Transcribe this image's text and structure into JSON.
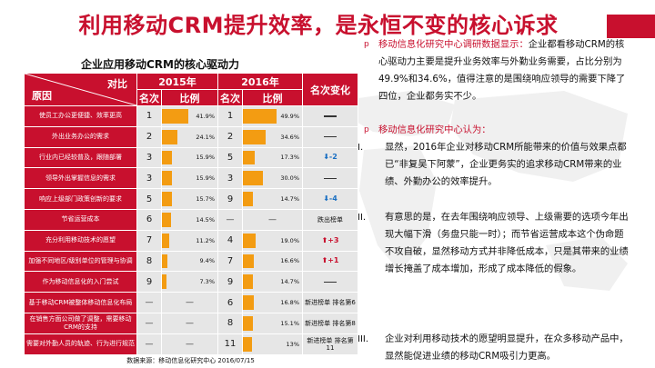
{
  "title": "利用移动CRM提升效率，是永恒不变的核心诉求",
  "table": {
    "caption": "企业应用移动CRM的核心驱动力",
    "header": {
      "corner_right": "对比",
      "corner_left": "原因",
      "year_2015": "2015年",
      "year_2016": "2016年",
      "change": "名次变化",
      "rank": "名次",
      "ratio": "比例"
    },
    "rows": [
      {
        "reason": "使员工办公更便捷、效率更高",
        "rank2015": "1",
        "ratio2015": "41.9%",
        "v2015": 41.9,
        "rank2016": "1",
        "ratio2016": "49.9%",
        "v2016": 49.9,
        "change_type": "same",
        "change": ""
      },
      {
        "reason": "外出业务办公的需求",
        "rank2015": "2",
        "ratio2015": "24.1%",
        "v2015": 24.1,
        "rank2016": "2",
        "ratio2016": "34.6%",
        "v2016": 34.6,
        "change_type": "same",
        "change": ""
      },
      {
        "reason": "行业内已经较普及，跟随部署",
        "rank2015": "3",
        "ratio2015": "15.9%",
        "v2015": 15.9,
        "rank2016": "5",
        "ratio2016": "17.3%",
        "v2016": 17.3,
        "change_type": "down",
        "change": "-2"
      },
      {
        "reason": "领导外出掌握信息的需求",
        "rank2015": "3",
        "ratio2015": "15.9%",
        "v2015": 15.9,
        "rank2016": "3",
        "ratio2016": "30.0%",
        "v2016": 30.0,
        "change_type": "same",
        "change": ""
      },
      {
        "reason": "响应上级部门政策创新的要求",
        "rank2015": "5",
        "ratio2015": "15.7%",
        "v2015": 15.7,
        "rank2016": "9",
        "ratio2016": "14.7%",
        "v2016": 14.7,
        "change_type": "down",
        "change": "-4"
      },
      {
        "reason": "节省运营成本",
        "rank2015": "6",
        "ratio2015": "14.5%",
        "v2015": 14.5,
        "rank2016": "—",
        "ratio2016": "—",
        "v2016": null,
        "change_type": "text",
        "change": "跌出榜单"
      },
      {
        "reason": "充分利用移动技术的愿望",
        "rank2015": "7",
        "ratio2015": "11.2%",
        "v2015": 11.2,
        "rank2016": "4",
        "ratio2016": "19.0%",
        "v2016": 19.0,
        "change_type": "up",
        "change": "+3"
      },
      {
        "reason": "加强不同地区/级别单位的管理与协调",
        "rank2015": "8",
        "ratio2015": "9.4%",
        "v2015": 9.4,
        "rank2016": "7",
        "ratio2016": "16.6%",
        "v2016": 16.6,
        "change_type": "up",
        "change": "+1"
      },
      {
        "reason": "作为移动信息化的入门尝试",
        "rank2015": "9",
        "ratio2015": "7.3%",
        "v2015": 7.3,
        "rank2016": "9",
        "ratio2016": "14.7%",
        "v2016": 14.7,
        "change_type": "same",
        "change": ""
      },
      {
        "reason": "基于移动CRM被整体移动信息化布局",
        "rank2015": "—",
        "ratio2015": "—",
        "v2015": null,
        "rank2016": "6",
        "ratio2016": "16.8%",
        "v2016": 16.8,
        "change_type": "text",
        "change": "新进榜单 排名第6"
      },
      {
        "reason": "在销售方面公司做了调整，需要移动CRM的支持",
        "rank2015": "—",
        "ratio2015": "—",
        "v2015": null,
        "rank2016": "8",
        "ratio2016": "15.1%",
        "v2016": 15.1,
        "change_type": "text",
        "change": "新进榜单 排名第8"
      },
      {
        "reason": "需要对外勤人员的轨迹、行为进行规范",
        "rank2015": "—",
        "ratio2015": "—",
        "v2015": null,
        "rank2016": "11",
        "ratio2016": "13%",
        "v2016": 13,
        "change_type": "text",
        "change": "新进榜单 排名第11"
      }
    ],
    "source": "数据来源：移动信息化研究中心 2016/07/15"
  },
  "right": {
    "bullet1_label": "移动信息化研究中心调研数据显示：",
    "bullet1_text": "企业都看移动CRM的核心驱动力主要是提升业务效率与外勤业务需要，占比分别为49.9%和34.6%，值得注意的是围绕响应领导的需要下降了四位，企业都务实不少。",
    "bullet2_label": "移动信息化研究中心认为：",
    "point1_num": "I.",
    "point1_text": "显然，2016年企业对移动CRM所能带来的价值与效果点都已“非复吴下阿蒙”，企业更务实的追求移动CRM带来的业绩、外勤办公的效率提升。",
    "point2_num": "II.",
    "point2_text": "有意思的是，在去年围绕响应领导、上级需要的选项今年出现大幅下滑（务盘只能一时）；而节省运营成本这个伪命题不攻自破，显然移动方式并非降低成本，只是其带来的业绩增长掩盖了成本增加，形成了成本降低的假象。",
    "point3_num": "III.",
    "point3_text": "企业对利用移动技术的愿望明显提升，在众多移动产品中，显然能促进业绩的移动CRM吸引力更高。",
    "bullet_glyph": "p"
  },
  "colors": {
    "accent": "#c8102e",
    "bar": "#f39c12",
    "down": "#1a6fc2"
  }
}
